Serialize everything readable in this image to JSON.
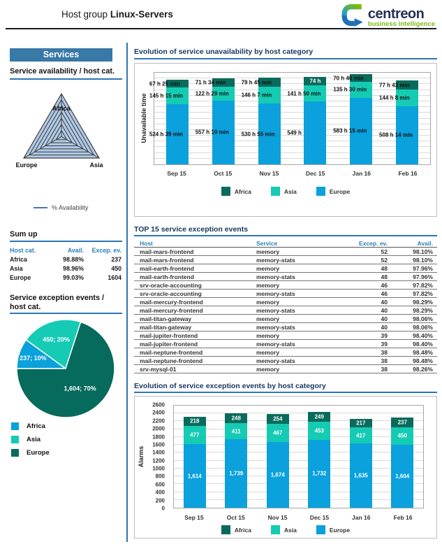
{
  "header": {
    "title_prefix": "Host group",
    "title_bold": "Linux-Servers",
    "logo_brand": "centreon",
    "logo_tagline": "business intelligence"
  },
  "colors": {
    "europe_blue": "#0AA1DC",
    "asia_turquoise": "#15CBB4",
    "africa_dark_teal": "#086B5B",
    "banner_blue": "#3879A8",
    "rule_blue": "#2E75B6",
    "heading_navy": "#17375E",
    "table_header_blue": "#2980B9",
    "logo_green": "#7db917",
    "logo_navy": "#253055"
  },
  "sidebar": {
    "banner": "Services",
    "availability_heading": "Service availability / host cat.",
    "radar_series_label": "% Availability",
    "sumup_heading": "Sum up",
    "sumup": {
      "columns": [
        "Host cat.",
        "Avail.",
        "Excep. ev."
      ],
      "rows": [
        [
          "Africa",
          "98.88%",
          "237"
        ],
        [
          "Asia",
          "98.96%",
          "450"
        ],
        [
          "Europe",
          "99.03%",
          "1604"
        ]
      ]
    },
    "pie_heading": "Service exception events / host cat.",
    "pie_legend": [
      {
        "label": "Africa",
        "color": "#0AA1DC"
      },
      {
        "label": "Asia",
        "color": "#15CBB4"
      },
      {
        "label": "Europe",
        "color": "#066A5C"
      }
    ]
  },
  "main": {
    "section1_title": "Evolution of service unavailability by host category",
    "section2_title": "TOP 15 service exception events",
    "section3_title": "Evolution of service exception events by host category",
    "table": {
      "columns": [
        "Host",
        "Service",
        "Excep. ev.",
        "Avail."
      ],
      "rows": [
        [
          "mail-mars-frontend",
          "memory",
          "52",
          "98.10%"
        ],
        [
          "mail-mars-frontend",
          "memory-stats",
          "52",
          "98.10%"
        ],
        [
          "mail-earth-frontend",
          "memory",
          "48",
          "97.96%"
        ],
        [
          "mail-earth-frontend",
          "memory-stats",
          "48",
          "97.96%"
        ],
        [
          "srv-oracle-accounting",
          "memory",
          "46",
          "97.82%"
        ],
        [
          "srv-oracle-accounting",
          "memory-stats",
          "46",
          "97.82%"
        ],
        [
          "mail-mercury-frontend",
          "memory",
          "40",
          "98.29%"
        ],
        [
          "mail-mercury-frontend",
          "memory-stats",
          "40",
          "98.29%"
        ],
        [
          "mail-titan-gateway",
          "memory",
          "40",
          "98.06%"
        ],
        [
          "mail-titan-gateway",
          "memory-stats",
          "40",
          "98.06%"
        ],
        [
          "mail-jupiter-frontend",
          "memory",
          "39",
          "98.40%"
        ],
        [
          "mail-jupiter-frontend",
          "memory-stats",
          "39",
          "98.40%"
        ],
        [
          "mail-neptune-frontend",
          "memory",
          "38",
          "98.48%"
        ],
        [
          "mail-neptune-frontend",
          "memory-stats",
          "38",
          "98.48%"
        ],
        [
          "srv-mysql-01",
          "memory",
          "38",
          "98.26%"
        ]
      ]
    }
  },
  "chart_data": [
    {
      "id": "availability-radar",
      "type": "radar",
      "axes": [
        "Africa",
        "Europe",
        "Asia"
      ],
      "series": [
        {
          "name": "% Availability",
          "values": [
            98.88,
            99.03,
            98.96
          ]
        }
      ],
      "rings": 7,
      "fill": "#AFC9E6",
      "stroke": "#3b3b3b"
    },
    {
      "id": "unavailability-by-host-category",
      "type": "bar",
      "stacked": true,
      "title": "Evolution of service unavailability by host category",
      "ylabel": "Unavailable time",
      "ymax": 800,
      "grid_step": 50,
      "grid": true,
      "legend_position": "bottom",
      "categories": [
        "Sep 15",
        "Oct 15",
        "Nov 15",
        "Dec 15",
        "Jan 16",
        "Feb 16"
      ],
      "series": [
        {
          "name": "Europe",
          "color": "#0AA1DC",
          "values": [
            524.65,
            557.17,
            530.92,
            549,
            583.25,
            508.23
          ],
          "labels": [
            "524 h 39 min",
            "557 h 10 min",
            "530 h 55 min",
            "549 h",
            "583 h 15 min",
            "508 h 14 min"
          ]
        },
        {
          "name": "Asia",
          "color": "#15CBB4",
          "values": [
            145.25,
            122.48,
            146.12,
            141.83,
            135.5,
            144.13
          ],
          "labels": [
            "145 h 15 min",
            "122 h 29 min",
            "146 h 7 min",
            "141 h 50 min",
            "135 h 30 min",
            "144 h 8 min"
          ]
        },
        {
          "name": "Africa",
          "color": "#086B5B",
          "values": [
            67.42,
            71.57,
            79.75,
            74,
            70.67,
            77.72
          ],
          "labels": [
            "67 h 25 min",
            "71 h 34 min",
            "79 h 45 min",
            "74 h",
            "70 h 40 min",
            "77 h 43 min"
          ],
          "label_inside": [
            false,
            false,
            false,
            true,
            false,
            false
          ]
        }
      ],
      "legend": [
        {
          "label": "Africa",
          "color": "#086B5B"
        },
        {
          "label": "Asia",
          "color": "#15CBB4"
        },
        {
          "label": "Europe",
          "color": "#0AA1DC"
        }
      ]
    },
    {
      "id": "exception-events-pie",
      "type": "pie",
      "start_angle": -90,
      "slices": [
        {
          "label": "Africa",
          "value": 237,
          "pct": 10,
          "text": "237; 10%",
          "color": "#0AA1DC"
        },
        {
          "label": "Asia",
          "value": 450,
          "pct": 20,
          "text": "450; 20%",
          "color": "#15CBB4"
        },
        {
          "label": "Europe",
          "value": 1604,
          "pct": 70,
          "text": "1,604; 70%",
          "color": "#066A5C"
        }
      ]
    },
    {
      "id": "exception-events-by-host-category",
      "type": "bar",
      "stacked": true,
      "title": "Evolution of service exception events by host category",
      "ylabel": "Alarms",
      "ymax": 2600,
      "grid_step": 200,
      "grid": true,
      "yticks": [
        0,
        200,
        400,
        600,
        800,
        1000,
        1200,
        1400,
        1600,
        1800,
        2000,
        2200,
        2400,
        2600
      ],
      "legend_position": "bottom",
      "categories": [
        "Sep 15",
        "Oct 15",
        "Nov 15",
        "Dec 15",
        "Jan 16",
        "Feb 16"
      ],
      "series": [
        {
          "name": "Europe",
          "color": "#0AA1DC",
          "values": [
            1614,
            1739,
            1674,
            1732,
            1635,
            1604
          ],
          "labels": [
            "1,614",
            "1,739",
            "1,674",
            "1,732",
            "1,635",
            "1,604"
          ]
        },
        {
          "name": "Asia",
          "color": "#15CBB4",
          "values": [
            477,
            411,
            467,
            453,
            417,
            450
          ],
          "labels": [
            "477",
            "411",
            "467",
            "453",
            "417",
            "450"
          ]
        },
        {
          "name": "Africa",
          "color": "#086B5B",
          "values": [
            218,
            248,
            254,
            249,
            217,
            237
          ],
          "labels": [
            "218",
            "248",
            "254",
            "249",
            "217",
            "237"
          ]
        }
      ],
      "legend": [
        {
          "label": "Africa",
          "color": "#086B5B"
        },
        {
          "label": "Asia",
          "color": "#15CBB4"
        },
        {
          "label": "Europe",
          "color": "#0AA1DC"
        }
      ]
    }
  ]
}
